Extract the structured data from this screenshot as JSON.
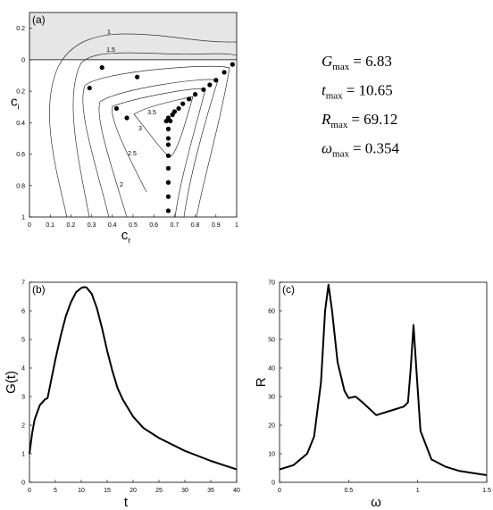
{
  "chart_data": [
    {
      "type": "contour",
      "panel_label": "(a)",
      "xlabel": {
        "text": "c",
        "sub": "r"
      },
      "ylabel": {
        "text": "c",
        "sub": "i"
      },
      "xlim": [
        0,
        1
      ],
      "ylim": [
        -1,
        0.3
      ],
      "xticks": [
        0,
        0.1,
        0.2,
        0.3,
        0.4,
        0.5,
        0.6,
        0.7,
        0.8,
        0.9,
        1
      ],
      "yticks": [
        0.2,
        0,
        {
          "value": -0.2,
          "label": "0.2"
        },
        {
          "value": -0.4,
          "label": "0.4"
        },
        {
          "value": -0.6,
          "label": "0.6"
        },
        {
          "value": -0.8,
          "label": "0.8"
        },
        {
          "value": -1,
          "label": "1"
        }
      ],
      "shade_above": 0,
      "contour_levels": [
        1,
        1.5,
        2,
        2.5,
        3,
        3.5
      ],
      "color": "#000000",
      "x": [
        0.35,
        0.52,
        0.29,
        0.42,
        0.47,
        0.98,
        0.94,
        0.9,
        0.87,
        0.84,
        0.8,
        0.77,
        0.74,
        0.72,
        0.7,
        0.69,
        0.67,
        0.66,
        0.68,
        0.67,
        0.67,
        0.67,
        0.67,
        0.67,
        0.67,
        0.67,
        0.67
      ],
      "values": [
        -0.05,
        -0.11,
        -0.18,
        -0.31,
        -0.37,
        -0.03,
        -0.08,
        -0.13,
        -0.16,
        -0.19,
        -0.22,
        -0.25,
        -0.28,
        -0.31,
        -0.33,
        -0.35,
        -0.37,
        -0.39,
        -0.39,
        -0.44,
        -0.5,
        -0.54,
        -0.61,
        -0.69,
        -0.78,
        -0.87,
        -0.96
      ],
      "annotations": [
        {
          "symbol": "G",
          "sub": "max",
          "text": "= 6.83"
        },
        {
          "symbol": "t",
          "sub": "max",
          "text": "= 10.65"
        },
        {
          "symbol": "R",
          "sub": "max",
          "text": "= 69.12"
        },
        {
          "symbol": "ω",
          "sub": "max",
          "text": "= 0.354"
        }
      ]
    },
    {
      "type": "line",
      "panel_label": "(b)",
      "xlabel": "t",
      "ylabel": "G(t)",
      "xlim": [
        0,
        40
      ],
      "ylim": [
        0,
        7
      ],
      "xticks": [
        0,
        5,
        10,
        15,
        20,
        25,
        30,
        35,
        40
      ],
      "yticks": [
        0,
        1,
        2,
        3,
        4,
        5,
        6,
        7
      ],
      "color": "#000000",
      "x": [
        0,
        0.5,
        1,
        2,
        3,
        3.5,
        4,
        5,
        6,
        7,
        8,
        9,
        10,
        10.65,
        11,
        12,
        13,
        14,
        15,
        16,
        17,
        18,
        20,
        22,
        25,
        30,
        35,
        40
      ],
      "values": [
        1,
        1.7,
        2.2,
        2.7,
        2.9,
        2.95,
        3.4,
        4.3,
        5.1,
        5.8,
        6.3,
        6.65,
        6.8,
        6.83,
        6.82,
        6.6,
        6.1,
        5.4,
        4.6,
        3.9,
        3.3,
        2.9,
        2.3,
        1.9,
        1.55,
        1.1,
        0.75,
        0.45
      ]
    },
    {
      "type": "line",
      "panel_label": "(c)",
      "xlabel": "ω",
      "ylabel": "R",
      "xlim": [
        0,
        1.5
      ],
      "ylim": [
        0,
        70
      ],
      "xticks": [
        0,
        0.5,
        1,
        1.5
      ],
      "yticks": [
        0,
        10,
        20,
        30,
        40,
        50,
        60,
        70
      ],
      "color": "#000000",
      "x": [
        0,
        0.1,
        0.2,
        0.25,
        0.3,
        0.33,
        0.354,
        0.38,
        0.42,
        0.47,
        0.5,
        0.55,
        0.6,
        0.7,
        0.8,
        0.9,
        0.93,
        0.95,
        0.97,
        0.99,
        1.02,
        1.1,
        1.2,
        1.3,
        1.5
      ],
      "values": [
        4.5,
        6,
        10,
        16,
        35,
        60,
        69.12,
        60,
        42,
        32,
        29.5,
        30,
        28,
        23.5,
        25,
        26.5,
        28,
        40,
        55,
        40,
        18,
        8,
        5.5,
        4,
        2.5
      ]
    }
  ]
}
